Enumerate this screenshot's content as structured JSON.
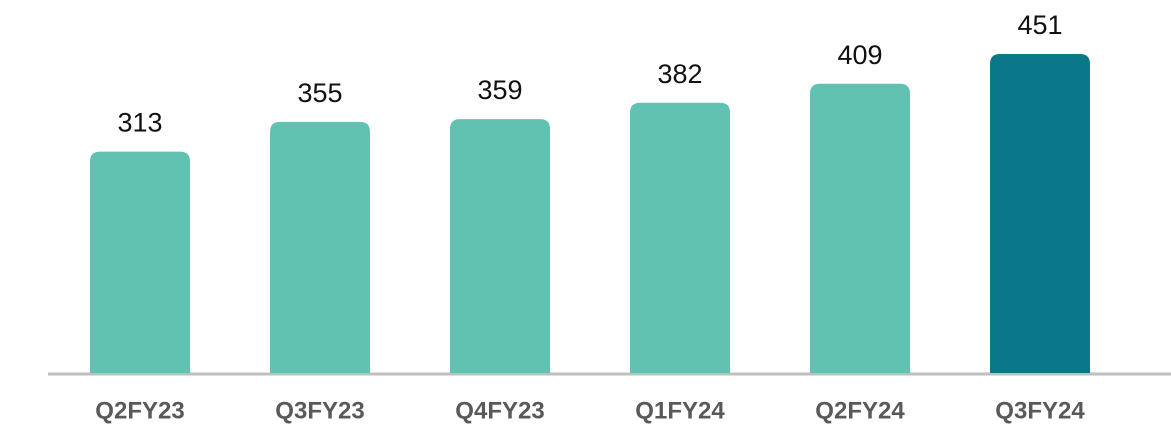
{
  "chart_data": {
    "type": "bar",
    "categories": [
      "Q2FY23",
      "Q3FY23",
      "Q4FY23",
      "Q1FY24",
      "Q2FY24",
      "Q3FY24"
    ],
    "values": [
      313,
      355,
      359,
      382,
      409,
      451
    ],
    "colors": [
      "#62c2b1",
      "#62c2b1",
      "#62c2b1",
      "#62c2b1",
      "#62c2b1",
      "#0b7889"
    ]
  }
}
